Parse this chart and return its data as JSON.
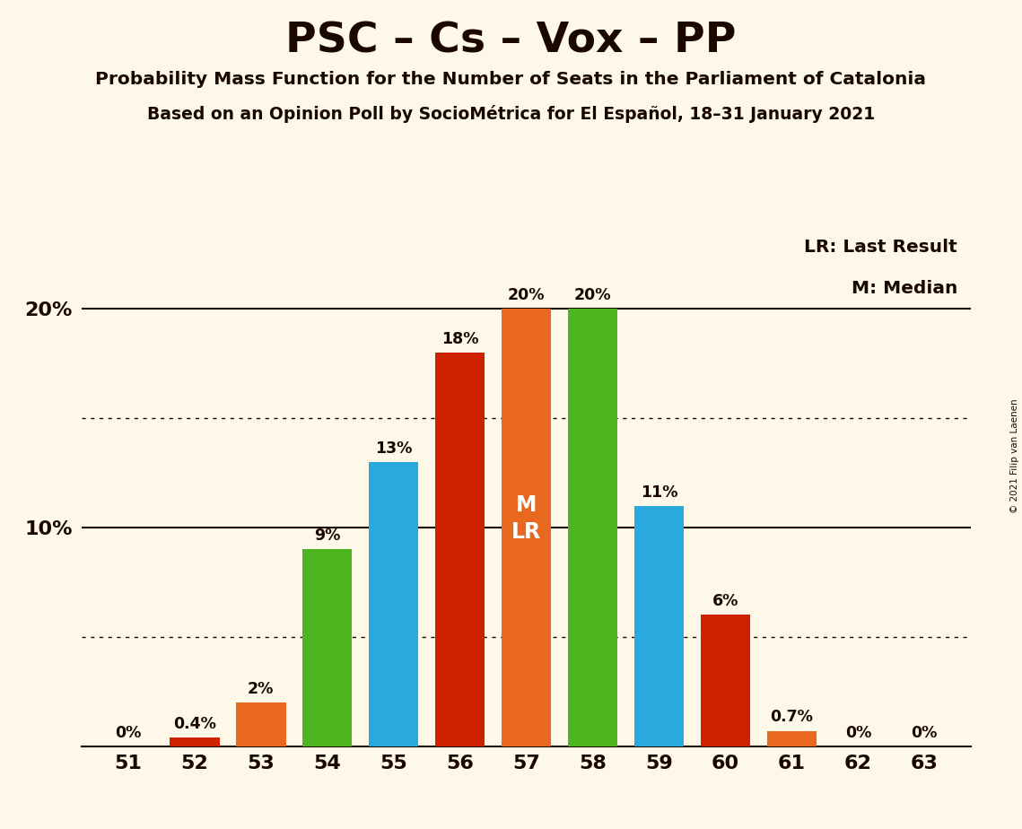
{
  "title": "PSC – Cs – Vox – PP",
  "subtitle1": "Probability Mass Function for the Number of Seats in the Parliament of Catalonia",
  "subtitle2": "Based on an Opinion Poll by SocioMétrica for El Español, 18–31 January 2021",
  "copyright": "© 2021 Filip van Laenen",
  "seats": [
    51,
    52,
    53,
    54,
    55,
    56,
    57,
    58,
    59,
    60,
    61,
    62,
    63
  ],
  "values": [
    0.0,
    0.4,
    2.0,
    9.0,
    13.0,
    18.0,
    20.0,
    20.0,
    11.0,
    6.0,
    0.7,
    0.0,
    0.0
  ],
  "value_labels": [
    "0%",
    "0.4%",
    "2%",
    "9%",
    "13%",
    "18%",
    "20%",
    "20%",
    "11%",
    "6%",
    "0.7%",
    "0%",
    "0%"
  ],
  "bar_colors": [
    "#cc2200",
    "#cc2200",
    "#e86820",
    "#4db520",
    "#29aadf",
    "#cc2200",
    "#e86820",
    "#4db520",
    "#29aadf",
    "#cc2200",
    "#e86820",
    "#4db520",
    "#29aadf"
  ],
  "median_seat": 57,
  "lr_seat": 57,
  "legend_lr": "LR: Last Result",
  "legend_m": "M: Median",
  "ylim": [
    0,
    22
  ],
  "dotted_lines": [
    5.0,
    15.0
  ],
  "solid_lines": [
    10.0,
    20.0
  ],
  "background_color": "#fdf8e8",
  "font_color": "#1a0800"
}
